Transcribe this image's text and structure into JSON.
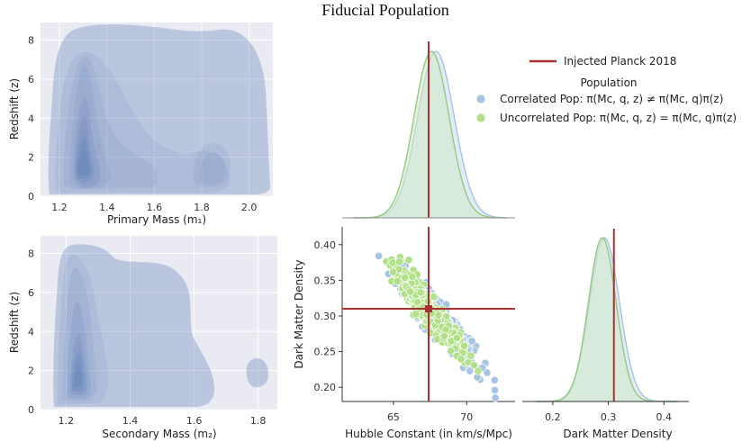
{
  "figure": {
    "title": "Fiducial Population",
    "colors": {
      "panel_bg": "#eaeaf2",
      "grid": "#ffffff",
      "kde": "#4c72b0",
      "correlated": "#a7c4e2",
      "uncorrelated": "#b2df8a",
      "marginal_corr_fill": "#c9dcef",
      "marginal_uncorr_fill": "#cfe9c4",
      "injected": "#a83232"
    }
  },
  "chart_data": [
    {
      "type": "kde_contour",
      "id": "primary",
      "title": "",
      "xlabel": "Primary Mass (m₁)",
      "ylabel": "Redshift (z)",
      "xlim": [
        1.12,
        2.1
      ],
      "ylim": [
        0,
        8.9
      ],
      "xticks": [
        1.2,
        1.4,
        1.6,
        1.8,
        2.0
      ],
      "xtick_labels": [
        "1.2",
        "1.4",
        "1.6",
        "1.8",
        "2.0"
      ],
      "yticks": [
        0,
        2,
        4,
        6,
        8
      ],
      "ytick_labels": [
        "0",
        "2",
        "4",
        "6",
        "8"
      ],
      "density_modes": [
        {
          "x": 1.28,
          "y": 1.8,
          "weight": 1.0
        },
        {
          "x": 1.85,
          "y": 1.9,
          "weight": 0.35
        }
      ]
    },
    {
      "type": "kde_contour",
      "id": "secondary",
      "title": "",
      "xlabel": "Secondary Mass (m₂)",
      "ylabel": "Redshift (z)",
      "xlim": [
        1.12,
        1.86
      ],
      "ylim": [
        0,
        8.9
      ],
      "xticks": [
        1.2,
        1.4,
        1.6,
        1.8
      ],
      "xtick_labels": [
        "1.2",
        "1.4",
        "1.6",
        "1.8"
      ],
      "yticks": [
        0,
        2,
        4,
        6,
        8
      ],
      "ytick_labels": [
        "0",
        "2",
        "4",
        "6",
        "8"
      ],
      "density_modes": [
        {
          "x": 1.27,
          "y": 1.8,
          "weight": 1.0
        },
        {
          "x": 1.8,
          "y": 1.7,
          "weight": 0.2
        }
      ]
    },
    {
      "type": "area",
      "id": "h0_marginal",
      "title": "",
      "xlabel": "",
      "ylabel": "",
      "xlim": [
        61.5,
        73.3
      ],
      "series": [
        {
          "name": "Correlated Pop",
          "mean": 67.9,
          "sd": 1.25
        },
        {
          "name": "Uncorrelated Pop",
          "mean": 67.6,
          "sd": 1.2
        }
      ],
      "injected": 67.4
    },
    {
      "type": "scatter",
      "id": "h0_vs_om",
      "title": "",
      "xlabel": "Hubble Constant (in km/s/Mpc)",
      "ylabel": "Dark Matter Density",
      "xlim": [
        61.5,
        73.3
      ],
      "ylim": [
        0.18,
        0.425
      ],
      "xticks": [
        65,
        70
      ],
      "xtick_labels": [
        "65",
        "70"
      ],
      "yticks": [
        0.2,
        0.25,
        0.3,
        0.35,
        0.4
      ],
      "ytick_labels": [
        "0.20",
        "0.25",
        "0.30",
        "0.35",
        "0.40"
      ],
      "series": [
        {
          "name": "Correlated Pop",
          "n": 380,
          "x_mean": 67.9,
          "x_sd": 1.3,
          "slope": -0.0235,
          "intercept_at_mean": 0.3,
          "noise": 0.013,
          "seed": 7
        },
        {
          "name": "Uncorrelated Pop",
          "n": 380,
          "x_mean": 67.5,
          "x_sd": 1.2,
          "slope": -0.0235,
          "intercept_at_mean": 0.306,
          "noise": 0.012,
          "seed": 19
        }
      ],
      "injected": {
        "x": 67.4,
        "y": 0.31
      }
    },
    {
      "type": "area",
      "id": "om_marginal",
      "title": "",
      "xlabel": "Dark Matter Density",
      "ylabel": "",
      "xlim": [
        0.145,
        0.445
      ],
      "xticks": [
        0.2,
        0.3,
        0.4
      ],
      "xtick_labels": [
        "0.2",
        "0.3",
        "0.4"
      ],
      "series": [
        {
          "name": "Correlated Pop",
          "mean": 0.293,
          "sd": 0.027
        },
        {
          "name": "Uncorrelated Pop",
          "mean": 0.289,
          "sd": 0.025
        }
      ],
      "injected": 0.31
    }
  ],
  "legend": {
    "line_label": "Injected Planck 2018",
    "title": "Population",
    "items": [
      "Correlated Pop: π(Mc, q, z) ≠ π(Mc, q)π(z)",
      "Uncorrelated Pop: π(Mc, q, z) = π(Mc, q)π(z)"
    ]
  }
}
